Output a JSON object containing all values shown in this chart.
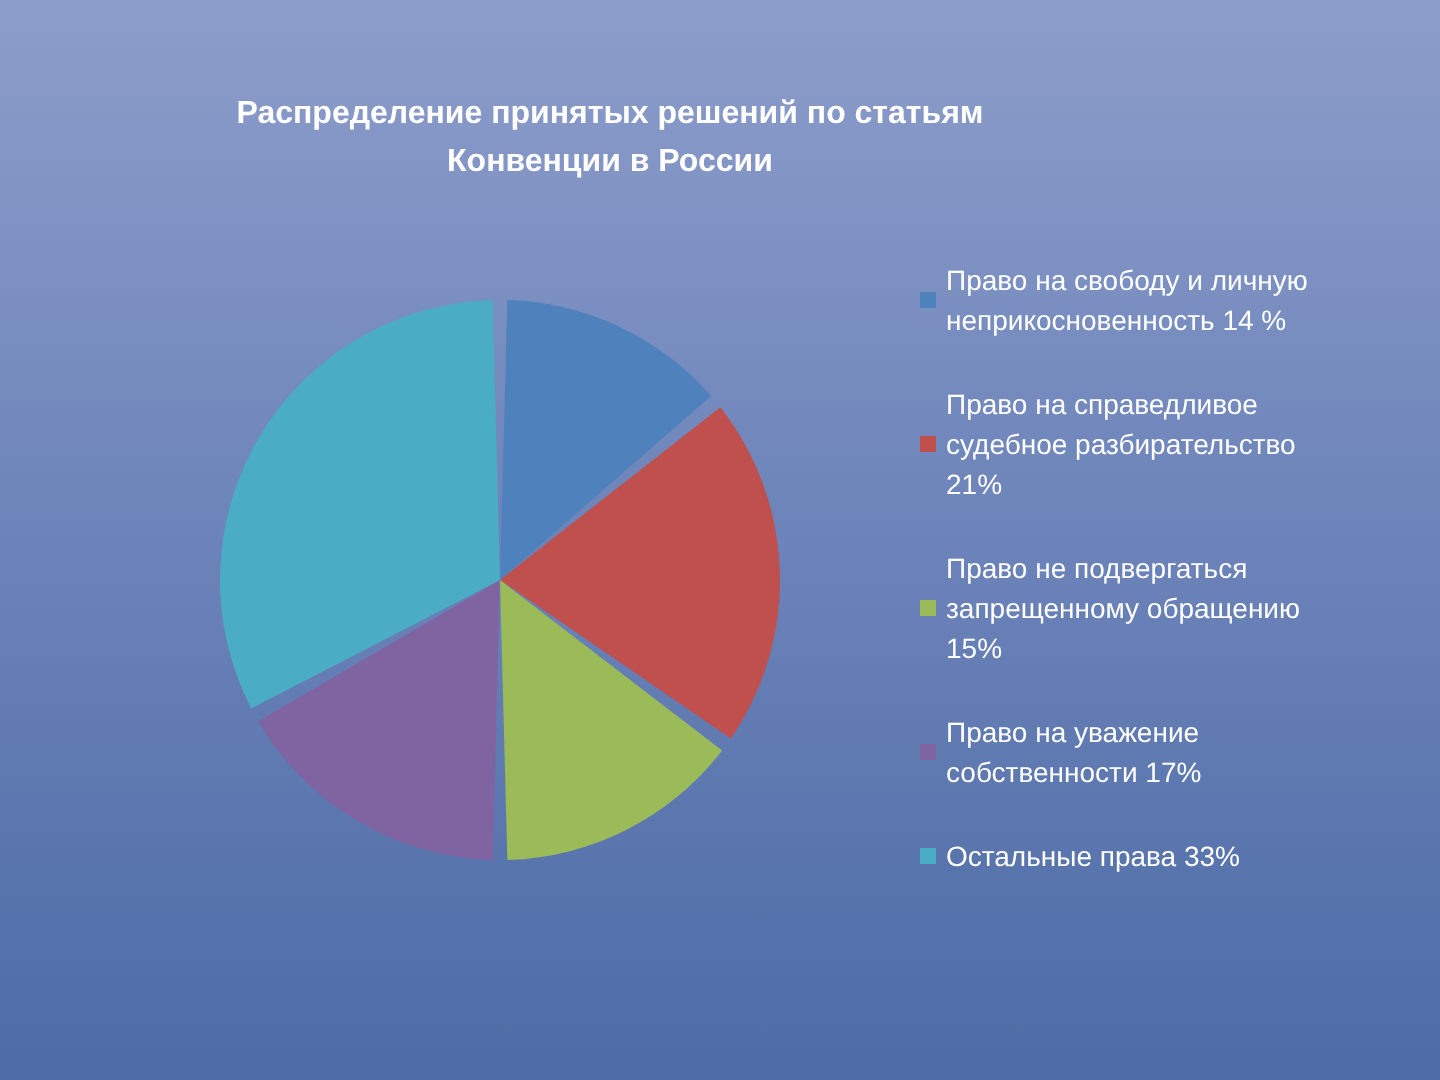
{
  "chart_data": {
    "type": "pie",
    "title": "Распределение принятых решений по статьям Конвенции в России",
    "categories": [
      "Право на свободу и личную неприкосновенность 14 %",
      "Право на справедливое судебное разбирательство 21%",
      "Право не подвергаться запрещенному обращению 15%",
      "Право на уважение собственности 17%",
      "Остальные права 33%"
    ],
    "values": [
      14,
      21,
      15,
      17,
      33
    ],
    "colors": [
      "#4f81bd",
      "#c0504d",
      "#9bbb59",
      "#8064a2",
      "#4bacc6"
    ],
    "legend": "right"
  }
}
